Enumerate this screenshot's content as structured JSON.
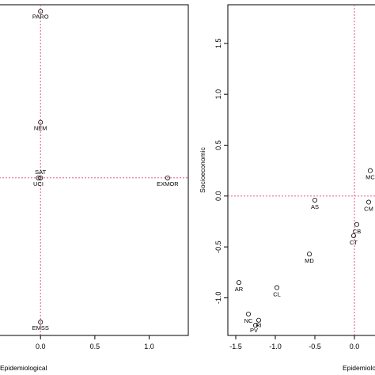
{
  "chart_data": [
    {
      "type": "scatter",
      "xlabel": "Epidemiological",
      "ylabel": "",
      "x_ticks": [
        "0.0",
        "0.5",
        "1.0"
      ],
      "x_tick_values": [
        0.0,
        0.5,
        1.0
      ],
      "y_ticks": [],
      "xlim": [
        -0.38,
        1.36
      ],
      "ylim": [
        -1.42,
        1.56
      ],
      "grid": false,
      "ref_lines": {
        "x": 0,
        "y": 0
      },
      "colors": {
        "points": "#000000",
        "reference": "#e0407a"
      },
      "points": [
        {
          "label": "PARO",
          "x": 0.0,
          "y": 1.5
        },
        {
          "label": "NEM",
          "x": 0.0,
          "y": 0.5
        },
        {
          "label": "SAT",
          "x": 0.0,
          "y": 0.0
        },
        {
          "label": "UCI",
          "x": -0.02,
          "y": 0.0
        },
        {
          "label": "EXMOR",
          "x": 1.17,
          "y": 0.0
        },
        {
          "label": "EMSS",
          "x": 0.0,
          "y": -1.3
        }
      ]
    },
    {
      "type": "scatter",
      "xlabel": "Epidemiological",
      "ylabel": "Socioeconomic",
      "x_ticks": [
        "-1.5",
        "-1.0",
        "-0.5",
        "0.0"
      ],
      "x_tick_values": [
        -1.5,
        -1.0,
        -0.5,
        0.0
      ],
      "y_ticks": [
        "1.5",
        "1.0",
        "0.5",
        "0.0",
        "-0.5",
        "-1.0"
      ],
      "y_tick_values": [
        1.5,
        1.0,
        0.5,
        0.0,
        -0.5,
        -1.0
      ],
      "xlim": [
        -1.6,
        0.27
      ],
      "ylim": [
        -1.37,
        1.88
      ],
      "grid": false,
      "ref_lines": {
        "x": 0,
        "y": 0
      },
      "colors": {
        "points": "#000000",
        "reference": "#e0407a"
      },
      "points": [
        {
          "label": "MC",
          "x": 0.2,
          "y": 0.25
        },
        {
          "label": "AS",
          "x": -0.5,
          "y": -0.04
        },
        {
          "label": "CM",
          "x": 0.18,
          "y": -0.06
        },
        {
          "label": "CB",
          "x": 0.03,
          "y": -0.28
        },
        {
          "label": "CT",
          "x": -0.01,
          "y": -0.39
        },
        {
          "label": "MD",
          "x": -0.57,
          "y": -0.57
        },
        {
          "label": "AR",
          "x": -1.46,
          "y": -0.85
        },
        {
          "label": "CL",
          "x": -0.98,
          "y": -0.9
        },
        {
          "label": "NC",
          "x": -1.34,
          "y": -1.16
        },
        {
          "label": "RI",
          "x": -1.21,
          "y": -1.22
        },
        {
          "label": "PV",
          "x": -1.25,
          "y": -1.27
        }
      ]
    }
  ]
}
